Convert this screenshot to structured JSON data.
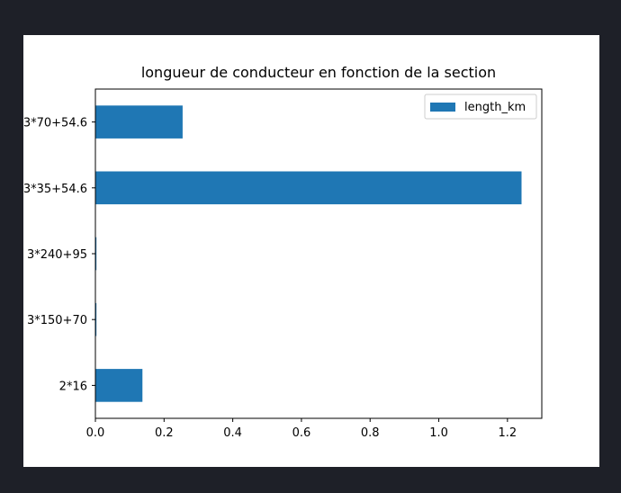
{
  "chart_data": {
    "type": "bar",
    "orientation": "horizontal",
    "title": "longueur de conducteur en fonction de la section",
    "xlabel": "",
    "ylabel": "",
    "categories": [
      "2*16",
      "3*150+70",
      "3*240+95",
      "3*35+54.6",
      "3*70+54.6"
    ],
    "series": [
      {
        "name": "length_km",
        "values": [
          0.137,
          0.003,
          0.003,
          1.241,
          0.254
        ],
        "color": "#1f77b4"
      }
    ],
    "xlim": [
      0,
      1.3
    ],
    "xticks": [
      0.0,
      0.2,
      0.4,
      0.6,
      0.8,
      1.0,
      1.2
    ],
    "xtick_labels": [
      "0.0",
      "0.2",
      "0.4",
      "0.6",
      "0.8",
      "1.0",
      "1.2"
    ],
    "legend": {
      "position": "top-right",
      "label": "length_km"
    },
    "grid": false
  }
}
